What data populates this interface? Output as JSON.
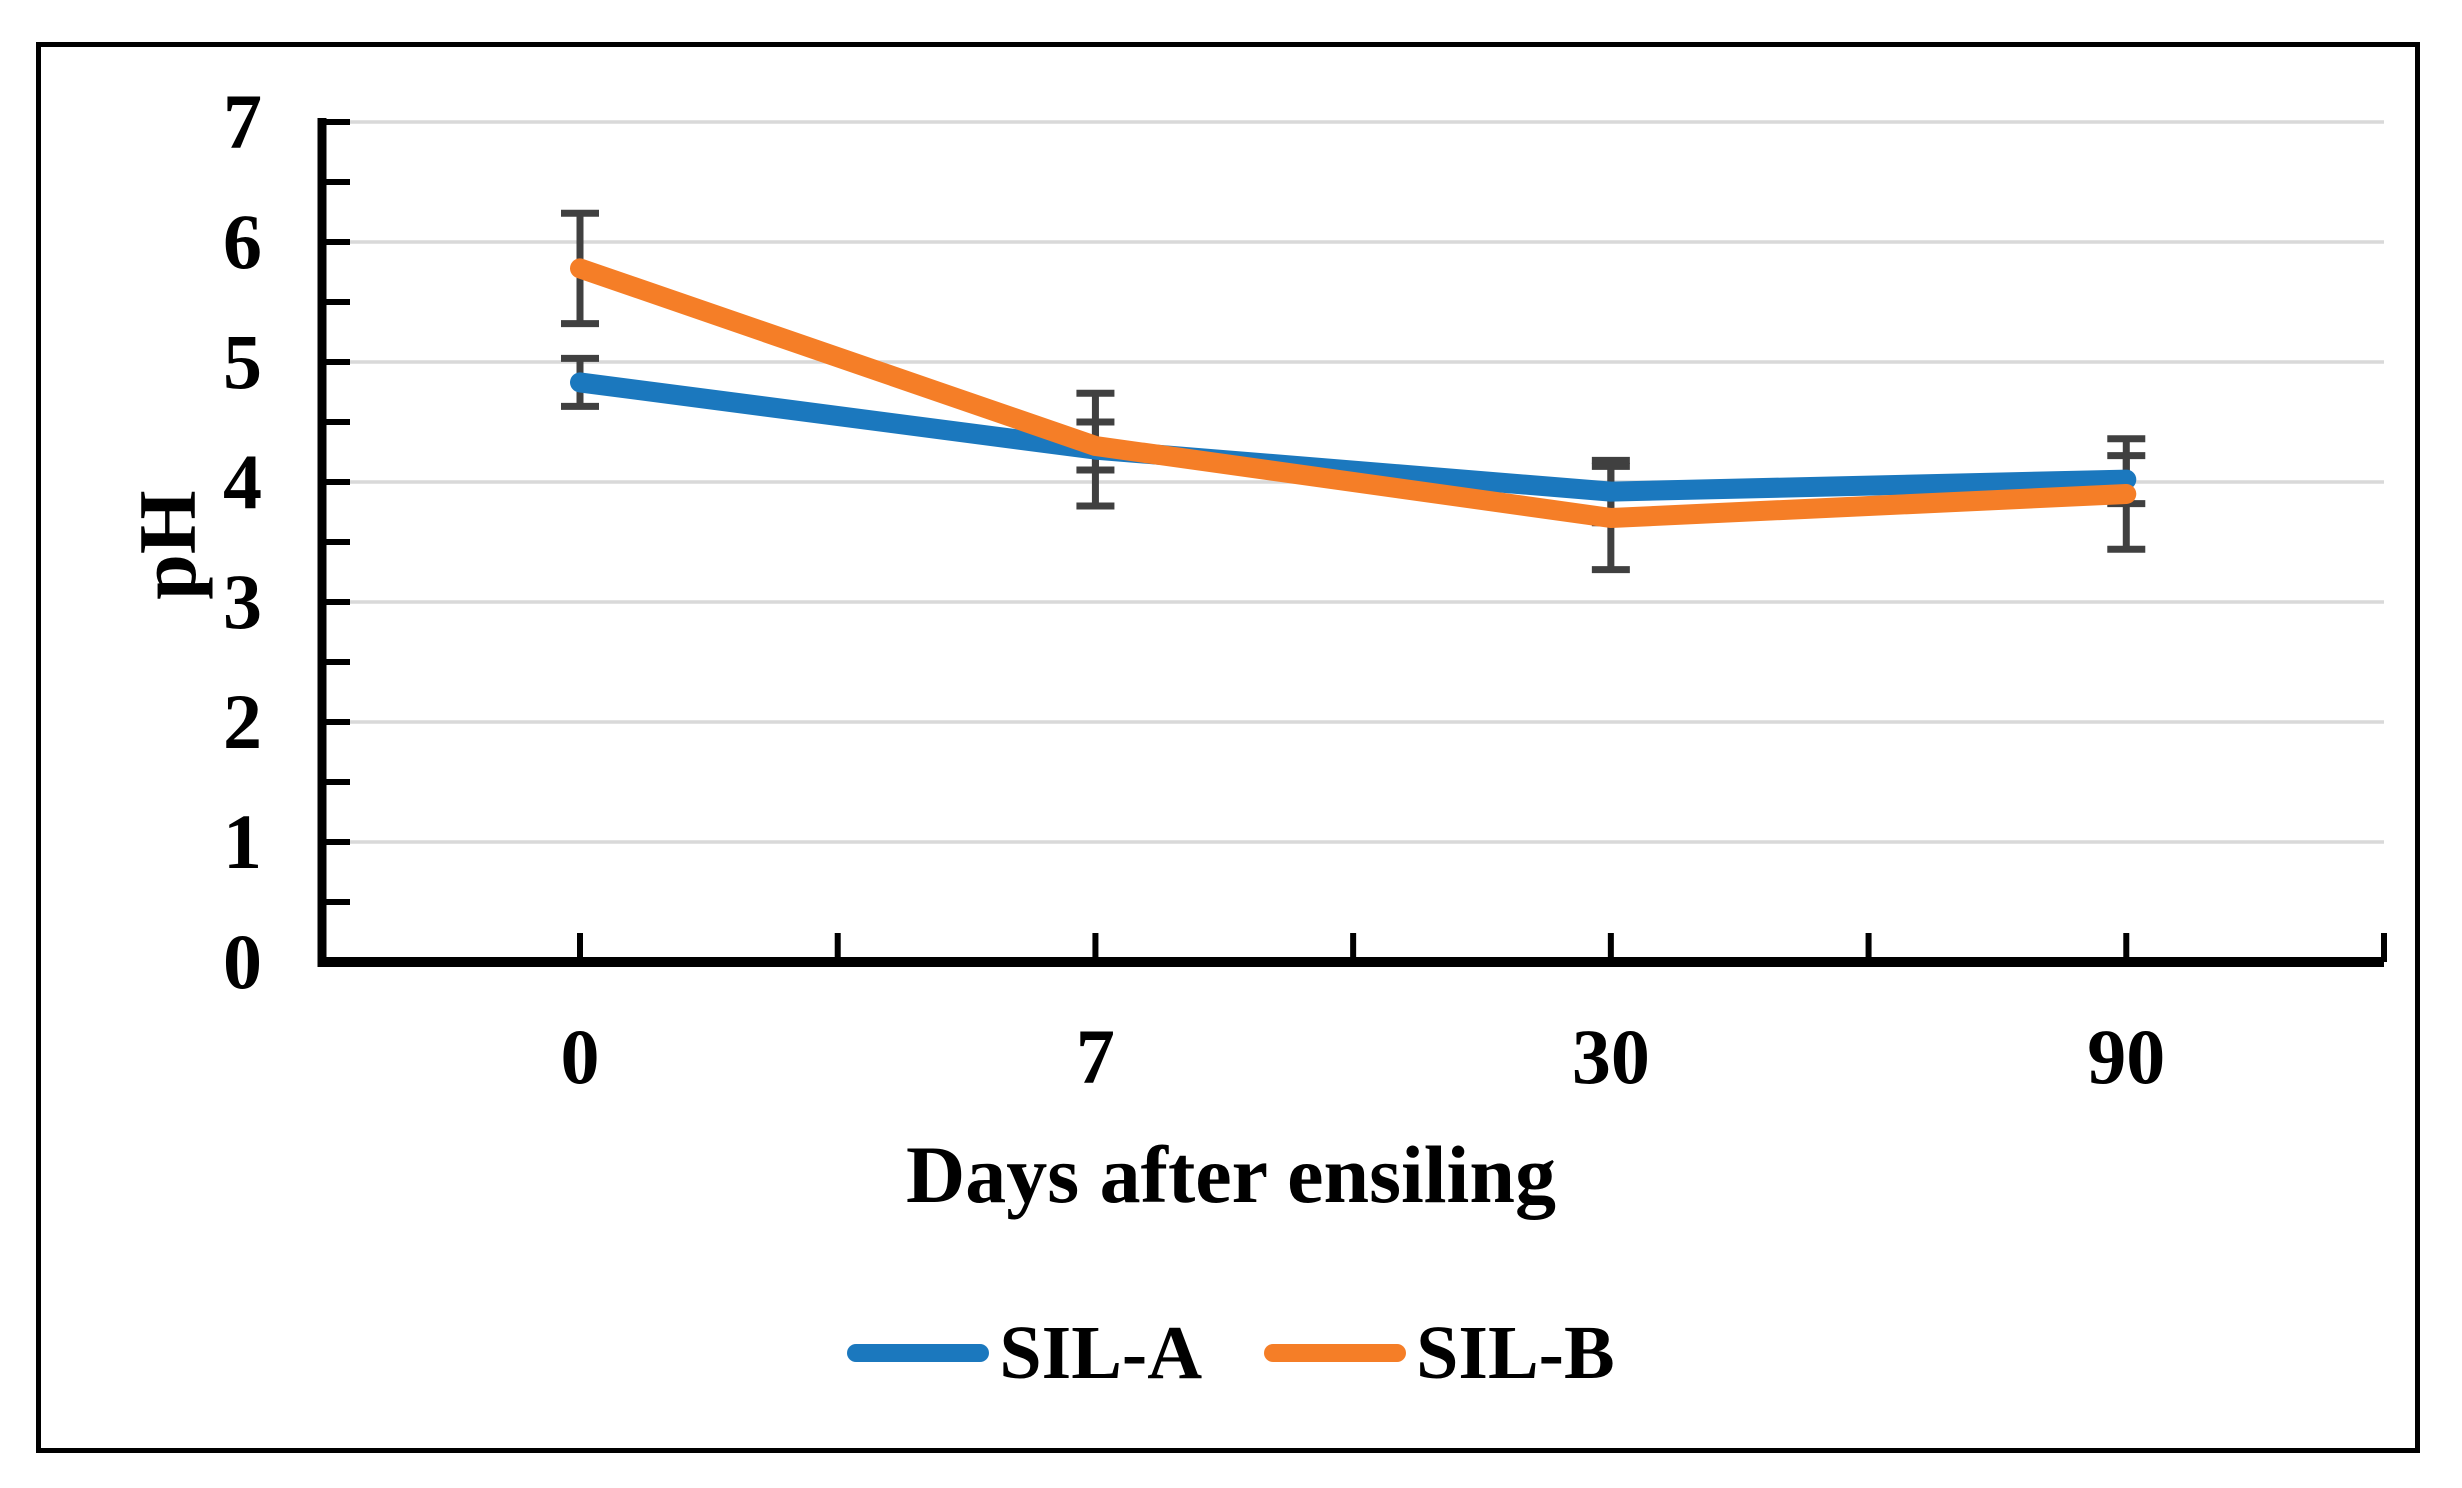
{
  "chart_data": {
    "type": "line",
    "title": "",
    "xlabel": "Days after ensiling",
    "ylabel": "pH",
    "categories": [
      "0",
      "7",
      "30",
      "90"
    ],
    "x_values_days": [
      0,
      7,
      30,
      90
    ],
    "ylim": [
      0,
      7
    ],
    "yticks": [
      0,
      1,
      2,
      3,
      4,
      5,
      6,
      7
    ],
    "grid": true,
    "legend_position": "bottom",
    "error_bar_color": "#404040",
    "gridline_color": "#D9D9D9",
    "axis_color": "#000000",
    "series": [
      {
        "name": "SIL-A",
        "color": "#1B78BE",
        "values": [
          4.83,
          4.27,
          3.92,
          4.02
        ],
        "err_hi": [
          5.03,
          4.74,
          4.18,
          4.22
        ],
        "err_lo": [
          4.63,
          3.8,
          3.66,
          3.82
        ]
      },
      {
        "name": "SIL-B",
        "color": "#F57E27",
        "values": [
          5.78,
          4.3,
          3.7,
          3.9
        ],
        "err_hi": [
          6.24,
          4.5,
          4.13,
          4.36
        ],
        "err_lo": [
          5.32,
          4.1,
          3.27,
          3.44
        ]
      }
    ]
  }
}
